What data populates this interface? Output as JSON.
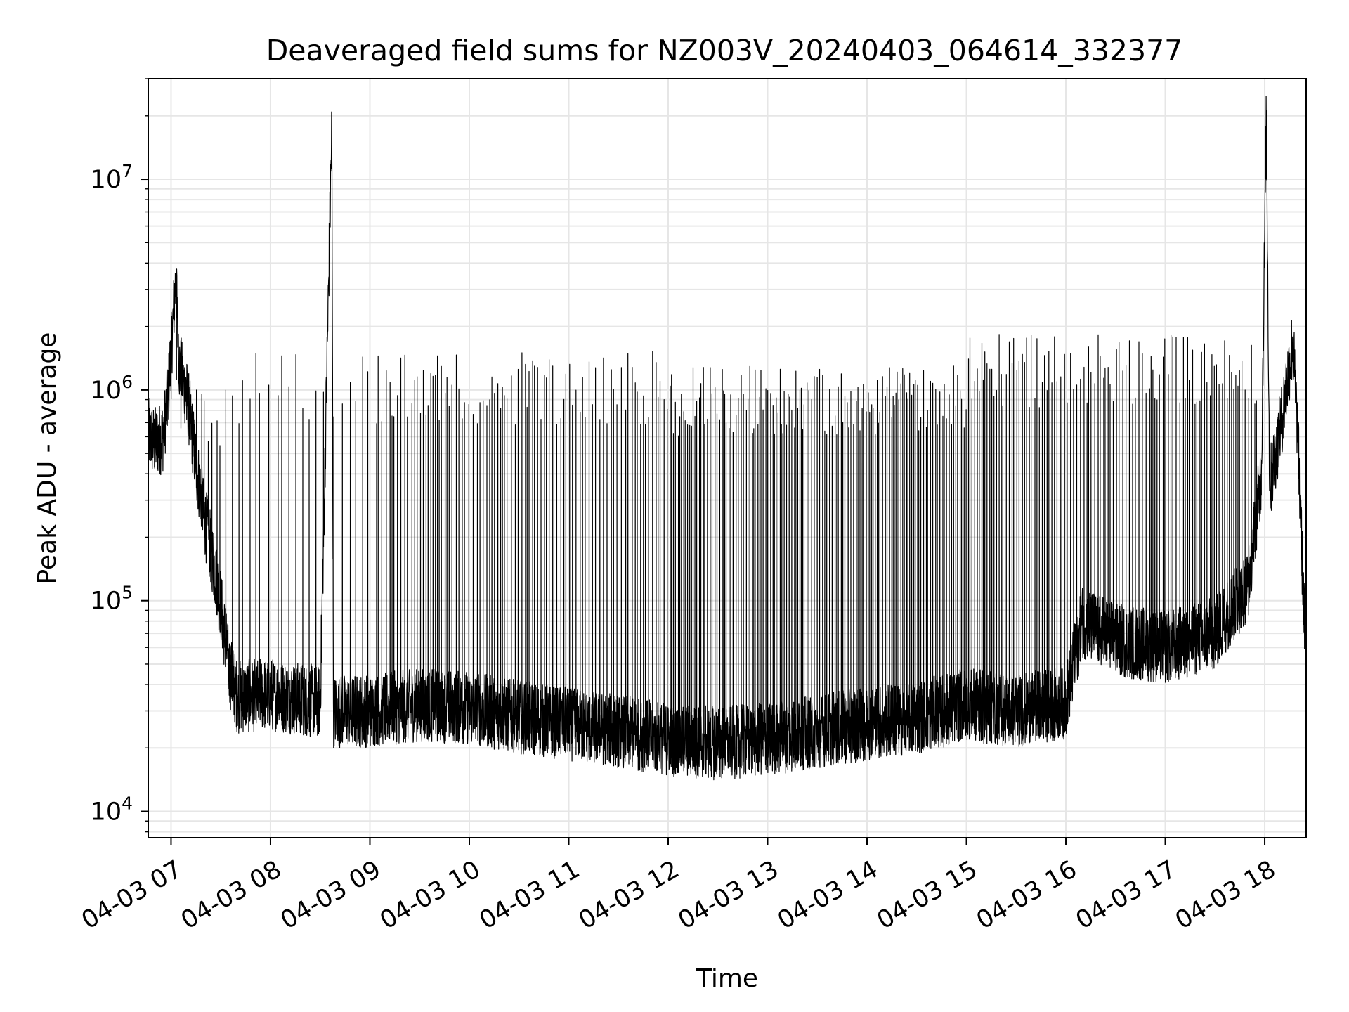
{
  "chart_data": {
    "type": "line",
    "title": "Deaveraged field sums for NZ003V_20240403_064614_332377",
    "xlabel": "Time",
    "ylabel": "Peak ADU - average",
    "yscale": "log",
    "grid": true,
    "x_axis": {
      "type": "time",
      "range": [
        "2024-04-03 06:46:14",
        "2024-04-03 18:25:00"
      ],
      "ticks": [
        {
          "t": "2024-04-03 07:00",
          "label": "04-03 07"
        },
        {
          "t": "2024-04-03 08:00",
          "label": "04-03 08"
        },
        {
          "t": "2024-04-03 09:00",
          "label": "04-03 09"
        },
        {
          "t": "2024-04-03 10:00",
          "label": "04-03 10"
        },
        {
          "t": "2024-04-03 11:00",
          "label": "04-03 11"
        },
        {
          "t": "2024-04-03 12:00",
          "label": "04-03 12"
        },
        {
          "t": "2024-04-03 13:00",
          "label": "04-03 13"
        },
        {
          "t": "2024-04-03 14:00",
          "label": "04-03 14"
        },
        {
          "t": "2024-04-03 15:00",
          "label": "04-03 15"
        },
        {
          "t": "2024-04-03 16:00",
          "label": "04-03 16"
        },
        {
          "t": "2024-04-03 17:00",
          "label": "04-03 17"
        },
        {
          "t": "2024-04-03 18:00",
          "label": "04-03 18"
        }
      ]
    },
    "y_axis": {
      "range": [
        7500,
        30000000
      ],
      "ticks": [
        {
          "value": 10000,
          "base": "10",
          "exp": "4"
        },
        {
          "value": 100000,
          "base": "10",
          "exp": "5"
        },
        {
          "value": 1000000,
          "base": "10",
          "exp": "6"
        },
        {
          "value": 10000000,
          "base": "10",
          "exp": "7"
        }
      ]
    },
    "series": [
      {
        "color": "#000000",
        "points": [
          [
            "2024-04-03 06:46",
            620000
          ],
          [
            "2024-04-03 06:50",
            560000
          ],
          [
            "2024-04-03 06:55",
            600000
          ],
          [
            "2024-04-03 06:58",
            900000
          ],
          [
            "2024-04-03 07:00",
            1500000
          ],
          [
            "2024-04-03 07:03",
            3500000
          ],
          [
            "2024-04-03 07:05",
            1300000
          ],
          [
            "2024-04-03 07:10",
            900000
          ],
          [
            "2024-04-03 07:15",
            450000
          ],
          [
            "2024-04-03 07:20",
            250000
          ],
          [
            "2024-04-03 07:25",
            160000
          ],
          [
            "2024-04-03 07:30",
            95000
          ],
          [
            "2024-04-03 07:35",
            48000
          ],
          [
            "2024-04-03 07:40",
            35000
          ],
          [
            "2024-04-03 08:00",
            36000
          ],
          [
            "2024-04-03 08:30",
            33000
          ],
          [
            "2024-04-03 08:37",
            18000000
          ],
          [
            "2024-04-03 08:38",
            30000
          ],
          [
            "2024-04-03 09:00",
            30000
          ],
          [
            "2024-04-03 09:30",
            32000
          ],
          [
            "2024-04-03 10:00",
            31000
          ],
          [
            "2024-04-03 10:30",
            28000
          ],
          [
            "2024-04-03 11:00",
            26000
          ],
          [
            "2024-04-03 11:30",
            24000
          ],
          [
            "2024-04-03 12:00",
            22000
          ],
          [
            "2024-04-03 12:30",
            21000
          ],
          [
            "2024-04-03 13:00",
            22000
          ],
          [
            "2024-04-03 13:30",
            24000
          ],
          [
            "2024-04-03 14:00",
            26000
          ],
          [
            "2024-04-03 14:30",
            28000
          ],
          [
            "2024-04-03 15:00",
            32000
          ],
          [
            "2024-04-03 15:30",
            30000
          ],
          [
            "2024-04-03 16:00",
            33000
          ],
          [
            "2024-04-03 16:10",
            80000
          ],
          [
            "2024-04-03 16:30",
            65000
          ],
          [
            "2024-04-03 17:00",
            60000
          ],
          [
            "2024-04-03 17:30",
            70000
          ],
          [
            "2024-04-03 17:50",
            120000
          ],
          [
            "2024-04-03 17:58",
            400000
          ],
          [
            "2024-04-03 18:01",
            20000000
          ],
          [
            "2024-04-03 18:03",
            350000
          ],
          [
            "2024-04-03 18:10",
            700000
          ],
          [
            "2024-04-03 18:17",
            1700000
          ],
          [
            "2024-04-03 18:20",
            600000
          ],
          [
            "2024-04-03 18:25",
            45000
          ]
        ],
        "oscillation": {
          "segments": [
            {
              "from": "2024-04-03 07:00",
              "to": "2024-04-03 07:30",
              "period_min": 2.5,
              "peak": 900000
            },
            {
              "from": "2024-04-03 07:30",
              "to": "2024-04-03 09:00",
              "period_min": 4,
              "peak": 1200000
            },
            {
              "from": "2024-04-03 09:00",
              "to": "2024-04-03 12:00",
              "period_min": 1.8,
              "peak": 1200000
            },
            {
              "from": "2024-04-03 12:00",
              "to": "2024-04-03 15:00",
              "period_min": 1.2,
              "peak": 1050000
            },
            {
              "from": "2024-04-03 15:00",
              "to": "2024-04-03 17:55",
              "period_min": 1.5,
              "peak": 1450000
            }
          ]
        }
      }
    ]
  }
}
